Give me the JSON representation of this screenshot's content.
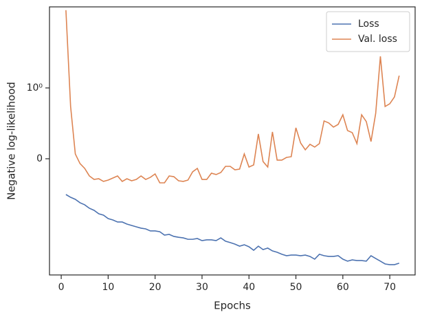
{
  "chart_data": {
    "type": "line",
    "x_label": "Epochs",
    "y_label": "Negative log-likelihood",
    "yscale": "symlog",
    "linthresh": 1,
    "x": [
      1,
      2,
      3,
      4,
      5,
      6,
      7,
      8,
      9,
      10,
      11,
      12,
      13,
      14,
      15,
      16,
      17,
      18,
      19,
      20,
      21,
      22,
      23,
      24,
      25,
      26,
      27,
      28,
      29,
      30,
      31,
      32,
      33,
      34,
      35,
      36,
      37,
      38,
      39,
      40,
      41,
      42,
      43,
      44,
      45,
      46,
      47,
      48,
      49,
      50,
      51,
      52,
      53,
      54,
      55,
      56,
      57,
      58,
      59,
      60,
      61,
      62,
      63,
      64,
      65,
      66,
      67,
      68,
      69,
      70,
      71,
      72
    ],
    "series": [
      {
        "name": "Loss",
        "color": "#4c72b0",
        "values": [
          -0.505,
          -0.544,
          -0.573,
          -0.621,
          -0.65,
          -0.699,
          -0.728,
          -0.777,
          -0.796,
          -0.845,
          -0.864,
          -0.893,
          -0.893,
          -0.922,
          -0.942,
          -0.961,
          -0.98,
          -0.99,
          -1.05,
          -1.05,
          -1.08,
          -1.22,
          -1.19,
          -1.28,
          -1.32,
          -1.35,
          -1.42,
          -1.42,
          -1.38,
          -1.49,
          -1.45,
          -1.45,
          -1.49,
          -1.35,
          -1.52,
          -1.6,
          -1.69,
          -1.82,
          -1.73,
          -1.86,
          -2.11,
          -1.82,
          -2.06,
          -1.95,
          -2.16,
          -2.27,
          -2.44,
          -2.57,
          -2.51,
          -2.51,
          -2.57,
          -2.51,
          -2.64,
          -2.91,
          -2.44,
          -2.57,
          -2.64,
          -2.64,
          -2.57,
          -2.91,
          -3.13,
          -2.99,
          -3.06,
          -3.06,
          -3.13,
          -2.57,
          -2.84,
          -3.13,
          -3.46,
          -3.55,
          -3.55,
          -3.37
        ]
      },
      {
        "name": "Val. loss",
        "color": "#dd8452",
        "values": [
          16.6,
          0.738,
          0.068,
          -0.068,
          -0.136,
          -0.243,
          -0.292,
          -0.282,
          -0.32,
          -0.301,
          -0.272,
          -0.243,
          -0.32,
          -0.282,
          -0.311,
          -0.292,
          -0.243,
          -0.292,
          -0.262,
          -0.214,
          -0.34,
          -0.34,
          -0.243,
          -0.253,
          -0.311,
          -0.32,
          -0.301,
          -0.184,
          -0.136,
          -0.292,
          -0.292,
          -0.204,
          -0.223,
          -0.194,
          -0.107,
          -0.107,
          -0.156,
          -0.146,
          0.068,
          -0.117,
          -0.087,
          0.35,
          -0.039,
          -0.117,
          0.379,
          -0.019,
          -0.019,
          0.019,
          0.029,
          0.437,
          0.223,
          0.126,
          0.204,
          0.165,
          0.214,
          0.534,
          0.505,
          0.447,
          0.485,
          0.621,
          0.398,
          0.369,
          0.214,
          0.621,
          0.524,
          0.243,
          0.641,
          3.13,
          0.738,
          0.777,
          0.874,
          1.56
        ]
      }
    ],
    "xlim": [
      -2.5,
      75.4
    ],
    "xticks": [
      0,
      10,
      20,
      30,
      40,
      50,
      60,
      70
    ],
    "ylim": [
      -5.15,
      18.7
    ],
    "yticks": [
      0,
      {
        "value": 1,
        "label": "10⁰"
      }
    ],
    "legend": "upper right"
  }
}
